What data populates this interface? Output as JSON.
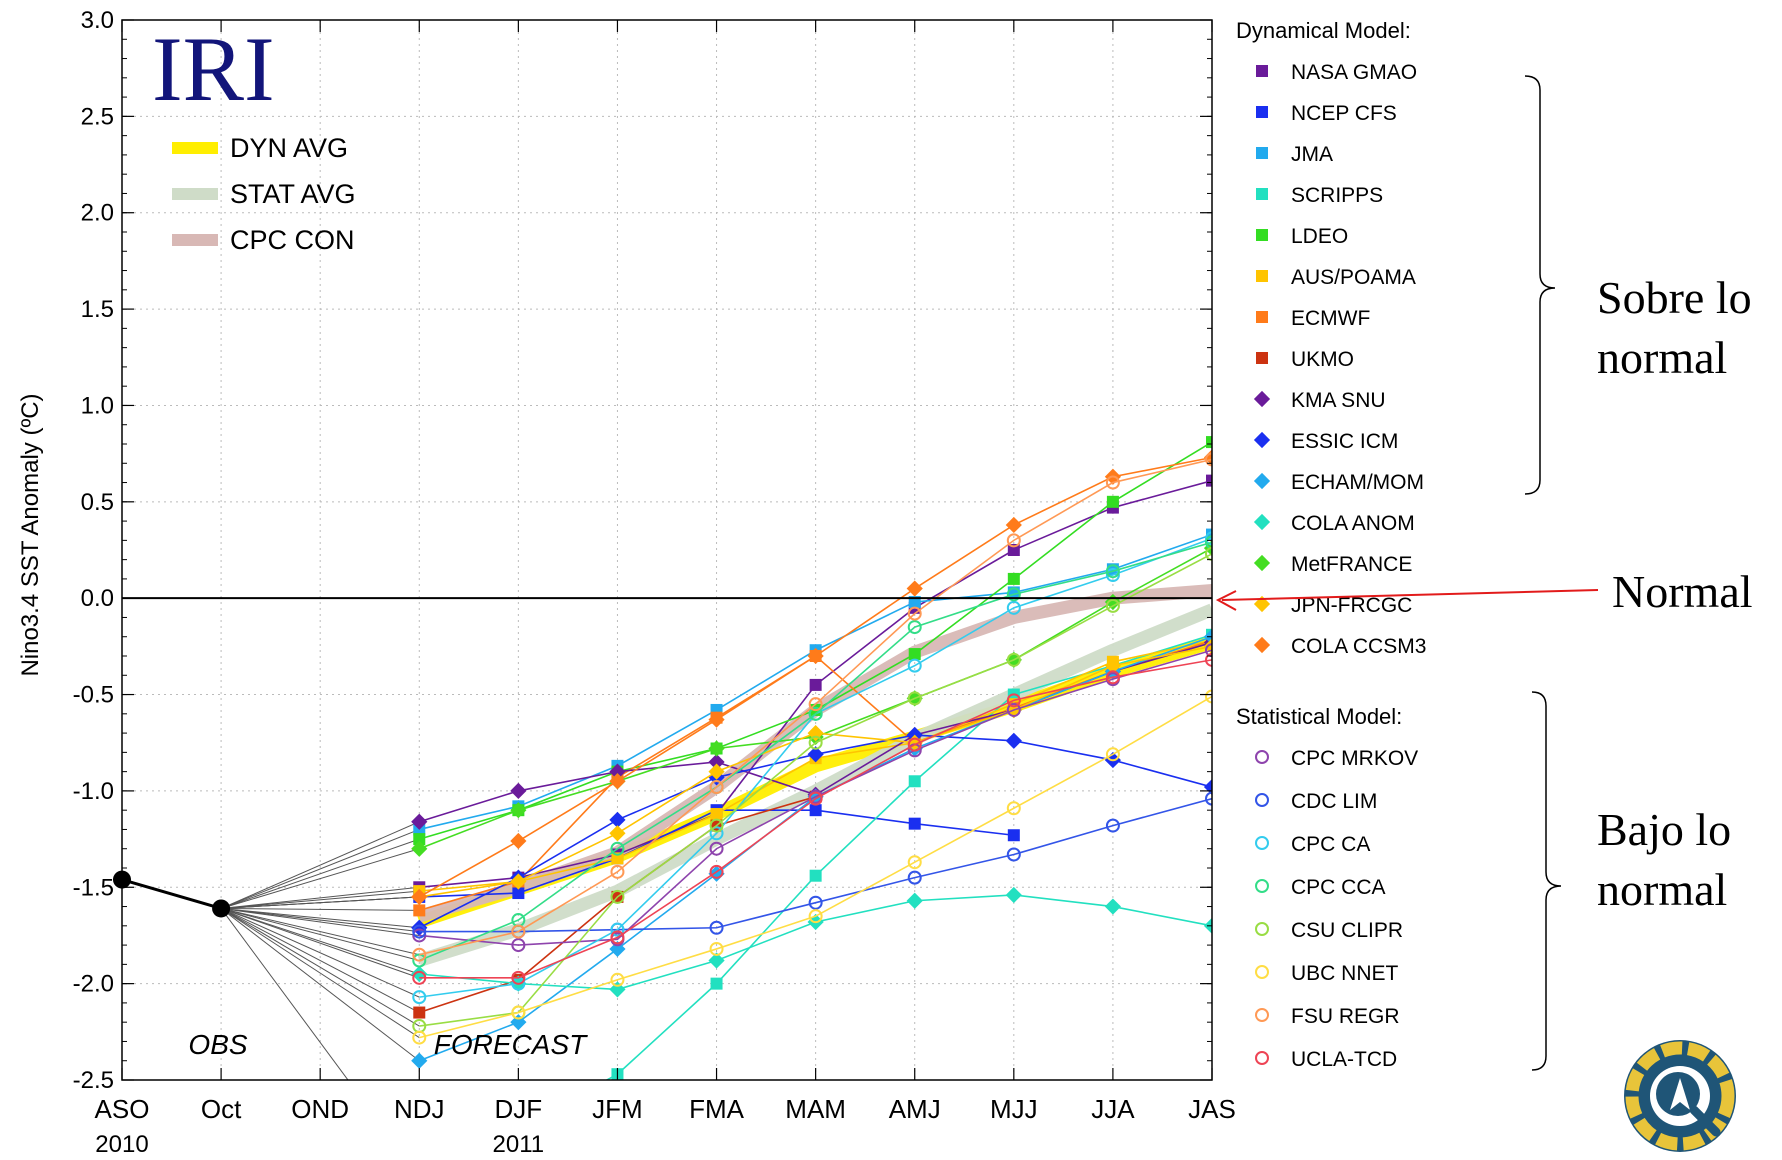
{
  "chart_data": {
    "type": "line",
    "title": "",
    "ylabel": "Nino3.4 SST Anomaly (ºC)",
    "xlabel": "",
    "ylim": [
      -2.5,
      3.0
    ],
    "yticks": [
      "3.0",
      "2.5",
      "2.0",
      "1.5",
      "1.0",
      "0.5",
      "0.0",
      "-0.5",
      "-1.0",
      "-1.5",
      "-2.0",
      "-2.5"
    ],
    "categories": [
      "ASO",
      "Oct",
      "OND",
      "NDJ",
      "DJF",
      "JFM",
      "FMA",
      "MAM",
      "AMJ",
      "MJJ",
      "JJA",
      "JAS"
    ],
    "year_labels": [
      {
        "label": "2010",
        "at": "ASO"
      },
      {
        "label": "2011",
        "at": "DJF"
      }
    ],
    "grid": true,
    "logo": "IRI",
    "obs_label": "OBS",
    "forecast_label": "FORECAST",
    "observed": {
      "x": [
        "ASO",
        "Oct"
      ],
      "values": [
        -1.46,
        -1.61
      ],
      "color": "#000000"
    },
    "averages": [
      {
        "name": "DYN AVG",
        "color": "#ffee00",
        "values": [
          -1.68,
          -1.51,
          -1.34,
          -1.12,
          -0.87,
          -0.72,
          -0.56,
          -0.38,
          -0.23
        ]
      },
      {
        "name": "STAT AVG",
        "color": "#cfdcc8",
        "values": [
          -1.88,
          -1.72,
          -1.52,
          -1.25,
          -1.0,
          -0.73,
          -0.5,
          -0.27,
          -0.06
        ]
      },
      {
        "name": "CPC CON",
        "color": "#d8b8b5",
        "values": [
          -1.65,
          -1.5,
          -1.32,
          -0.98,
          -0.58,
          -0.28,
          -0.1,
          0.0,
          0.04
        ]
      }
    ],
    "dynamical_heading": "Dynamical Model:",
    "statistical_heading": "Statistical Model:",
    "dynamical": [
      {
        "name": "NASA GMAO",
        "color": "#6a1b9a",
        "marker": "square",
        "values": [
          -1.5,
          -1.45,
          -1.33,
          -1.12,
          -0.45,
          -0.05,
          0.25,
          0.47,
          0.61
        ]
      },
      {
        "name": "NCEP CFS",
        "color": "#1a2ff0",
        "marker": "square",
        "values": [
          -1.55,
          -1.53,
          -1.35,
          -1.1,
          -1.1,
          -1.17,
          -1.23
        ]
      },
      {
        "name": "JMA",
        "color": "#22aaee",
        "marker": "square",
        "values": [
          -1.2,
          -1.08,
          -0.87,
          -0.58,
          -0.27,
          -0.02,
          0.03,
          0.15,
          0.33
        ]
      },
      {
        "name": "SCRIPPS",
        "color": "#22e0c0",
        "marker": "square",
        "values": [
          -3.0,
          -2.75,
          -2.47,
          -2.0,
          -1.44,
          -0.95,
          -0.5,
          -0.35,
          -0.19
        ]
      },
      {
        "name": "LDEO",
        "color": "#33dd22",
        "marker": "square",
        "values": [
          -1.25,
          -1.1,
          -0.9,
          -0.78,
          -0.58,
          -0.29,
          0.1,
          0.5,
          0.81
        ]
      },
      {
        "name": "AUS/POAMA",
        "color": "#ffc400",
        "marker": "square",
        "values": [
          -1.52,
          -1.47,
          -1.35,
          -1.12,
          -0.83,
          -0.75,
          -0.55,
          -0.33,
          -0.22
        ]
      },
      {
        "name": "ECMWF",
        "color": "#ff7b1a",
        "marker": "square",
        "values": [
          -1.62,
          -1.47,
          -0.93,
          -0.62,
          -0.3,
          -0.75,
          -0.57,
          -0.38,
          -0.22
        ]
      },
      {
        "name": "UKMO",
        "color": "#cc3311",
        "marker": "square",
        "values": [
          -2.15,
          -1.98,
          -1.55,
          -1.18,
          -1.03
        ]
      },
      {
        "name": "KMA SNU",
        "color": "#6a1b9a",
        "marker": "diamond",
        "values": [
          -1.16,
          -1.0,
          -0.9,
          -0.85,
          -1.02,
          -0.71,
          -0.58,
          -0.38,
          -0.23
        ]
      },
      {
        "name": "ESSIC ICM",
        "color": "#1a2ff0",
        "marker": "diamond",
        "values": [
          -1.71,
          -1.45,
          -1.15,
          -0.93,
          -0.81,
          -0.71,
          -0.74,
          -0.84,
          -0.98
        ]
      },
      {
        "name": "ECHAM/MOM",
        "color": "#22aaee",
        "marker": "diamond",
        "values": [
          -2.4,
          -2.2,
          -1.82,
          -1.43,
          -1.03,
          -0.78,
          -0.58,
          -0.38,
          -0.2
        ]
      },
      {
        "name": "COLA ANOM",
        "color": "#22e0c0",
        "marker": "diamond",
        "values": [
          -1.95,
          -2.0,
          -2.03,
          -1.88,
          -1.68,
          -1.57,
          -1.54,
          -1.6,
          -1.7
        ]
      },
      {
        "name": "MetFRANCE",
        "color": "#44dd22",
        "marker": "diamond",
        "values": [
          -1.3,
          -1.1,
          -0.95,
          -0.78,
          -0.72,
          -0.52,
          -0.32,
          -0.02,
          0.26
        ]
      },
      {
        "name": "JPN-FRCGC",
        "color": "#ffc400",
        "marker": "diamond",
        "values": [
          -1.55,
          -1.47,
          -1.22,
          -0.9,
          -0.7,
          -0.75,
          -0.58,
          -0.35,
          -0.25
        ]
      },
      {
        "name": "COLA CCSM3",
        "color": "#ff7b1a",
        "marker": "diamond",
        "values": [
          -1.55,
          -1.26,
          -0.95,
          -0.63,
          -0.3,
          0.05,
          0.38,
          0.63,
          0.73
        ]
      }
    ],
    "statistical": [
      {
        "name": "CPC MRKOV",
        "color": "#8e44ad",
        "marker": "circle",
        "values": [
          -1.75,
          -1.8,
          -1.77,
          -1.3,
          -1.03,
          -0.79,
          -0.58,
          -0.42,
          -0.27
        ]
      },
      {
        "name": "CDC LIM",
        "color": "#3355e8",
        "marker": "circle",
        "values": [
          -1.73,
          -1.73,
          -1.72,
          -1.71,
          -1.58,
          -1.45,
          -1.33,
          -1.18,
          -1.04
        ]
      },
      {
        "name": "CPC CA",
        "color": "#33ccee",
        "marker": "circle",
        "values": [
          -2.07,
          -2.0,
          -1.72,
          -1.22,
          -0.6,
          -0.35,
          -0.05,
          0.12,
          0.31
        ]
      },
      {
        "name": "CPC CCA",
        "color": "#33dd88",
        "marker": "circle",
        "values": [
          -1.88,
          -1.67,
          -1.3,
          -0.98,
          -0.6,
          -0.15,
          0.02,
          0.14,
          0.29
        ]
      },
      {
        "name": "CSU CLIPR",
        "color": "#99dd44",
        "marker": "circle",
        "values": [
          -2.22,
          -2.15,
          -1.55,
          -1.18,
          -0.75,
          -0.52,
          -0.32,
          -0.04,
          0.23
        ]
      },
      {
        "name": "UBC NNET",
        "color": "#ffdd44",
        "marker": "circle",
        "values": [
          -2.28,
          -2.15,
          -1.98,
          -1.82,
          -1.65,
          -1.37,
          -1.09,
          -0.81,
          -0.51
        ]
      },
      {
        "name": "FSU REGR",
        "color": "#ff9955",
        "marker": "circle",
        "values": [
          -1.85,
          -1.73,
          -1.42,
          -0.98,
          -0.55,
          -0.08,
          0.3,
          0.6,
          0.72
        ]
      },
      {
        "name": "UCLA-TCD",
        "color": "#ee4455",
        "marker": "circle",
        "values": [
          -1.97,
          -1.97,
          -1.76,
          -1.42,
          -1.04,
          -0.76,
          -0.53,
          -0.41,
          -0.32
        ]
      }
    ],
    "annotations": {
      "above": "Sobre lo normal",
      "normal": "Normal",
      "below": "Bajo lo normal"
    }
  }
}
